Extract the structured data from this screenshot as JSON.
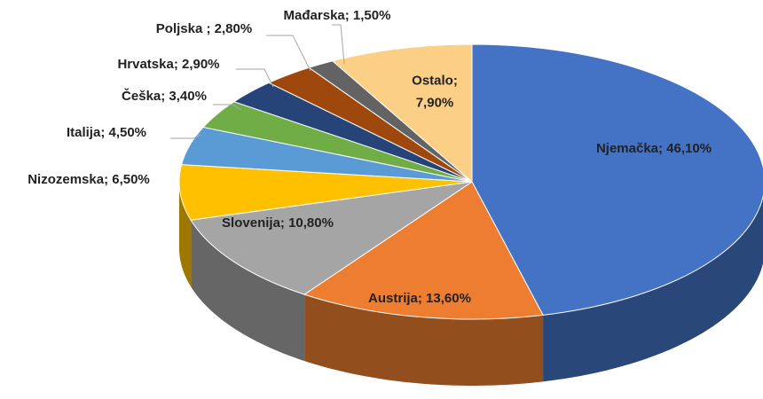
{
  "chart_data": {
    "type": "pie",
    "categories": [
      "Njemačka",
      "Austrija",
      "Slovenija",
      "Nizozemska",
      "Italija",
      "Češka",
      "Hrvatska",
      "Poljska",
      "Mađarska",
      "Ostalo"
    ],
    "values": [
      46.1,
      13.6,
      10.8,
      6.5,
      4.5,
      3.4,
      2.9,
      2.8,
      1.5,
      7.9
    ],
    "value_labels": [
      [
        "Njemačka; 46,10%"
      ],
      [
        "Austrija; 13,60%"
      ],
      [
        "Slovenija; 10,80%"
      ],
      [
        "Nizozemska; 6,50%"
      ],
      [
        "Italija; 4,50%"
      ],
      [
        "Češka; 3,40%"
      ],
      [
        "Hrvatska; 2,90%"
      ],
      [
        "Poljska ; 2,80%"
      ],
      [
        "Mađarska; 1,50%"
      ],
      [
        "Ostalo;",
        "7,90%"
      ]
    ],
    "colors": [
      "#4472c4",
      "#ed7d31",
      "#a5a5a5",
      "#ffc000",
      "#5b9bd5",
      "#70ad47",
      "#264478",
      "#9e480e",
      "#636363",
      "#fbcf86"
    ]
  }
}
